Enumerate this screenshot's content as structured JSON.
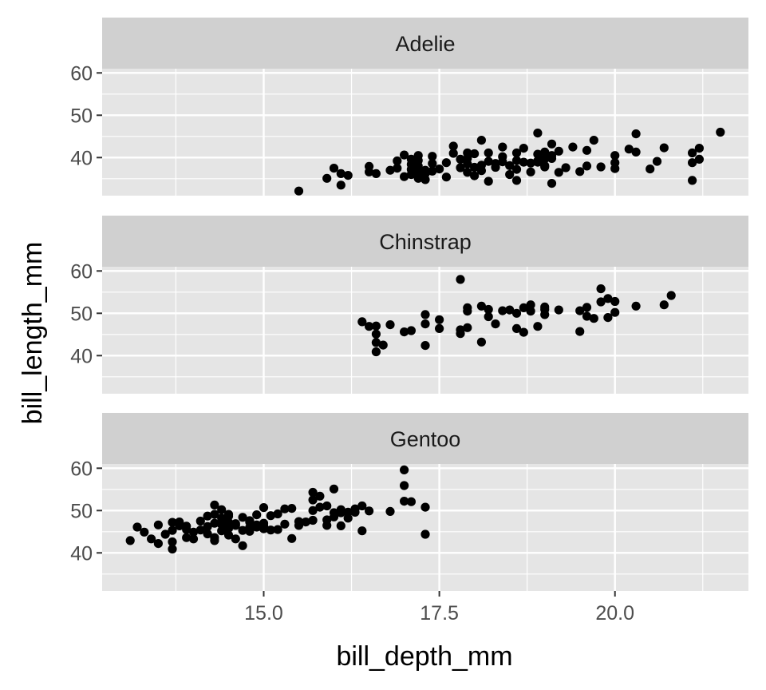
{
  "chart_data": {
    "type": "scatter",
    "xlabel": "bill_depth_mm",
    "ylabel": "bill_length_mm",
    "xlim": [
      12.7,
      21.9
    ],
    "ylim": [
      31.0,
      61.0
    ],
    "x_ticks": [
      15.0,
      17.5,
      20.0
    ],
    "x_tick_labels": [
      "15.0",
      "17.5",
      "20.0"
    ],
    "y_ticks": [
      40,
      50,
      60
    ],
    "y_tick_labels": [
      "40",
      "50",
      "60"
    ],
    "grid": true,
    "legend": "none",
    "colors": {
      "panel_bg": "#e5e5e5",
      "strip_bg": "#d0d0d0",
      "grid": "#ffffff",
      "point": "#000000"
    },
    "facets": [
      {
        "label": "Adelie",
        "points": [
          [
            15.5,
            32.1
          ],
          [
            15.9,
            35.1
          ],
          [
            16.0,
            37.5
          ],
          [
            16.1,
            36.2
          ],
          [
            16.1,
            33.5
          ],
          [
            16.2,
            35.8
          ],
          [
            16.5,
            37.9
          ],
          [
            16.5,
            36.6
          ],
          [
            16.6,
            36.2
          ],
          [
            16.8,
            37.0
          ],
          [
            16.9,
            39.2
          ],
          [
            16.9,
            37.5
          ],
          [
            17.0,
            35.5
          ],
          [
            17.0,
            40.6
          ],
          [
            17.1,
            36.0
          ],
          [
            17.1,
            38.4
          ],
          [
            17.1,
            39.6
          ],
          [
            17.1,
            37.2
          ],
          [
            17.2,
            38.0
          ],
          [
            17.2,
            36.4
          ],
          [
            17.2,
            40.5
          ],
          [
            17.2,
            35.1
          ],
          [
            17.3,
            37.0
          ],
          [
            17.3,
            34.8
          ],
          [
            17.3,
            36.2
          ],
          [
            17.4,
            38.6
          ],
          [
            17.4,
            40.3
          ],
          [
            17.5,
            37.3
          ],
          [
            17.6,
            38.8
          ],
          [
            17.6,
            35.4
          ],
          [
            17.7,
            41.0
          ],
          [
            17.7,
            42.7
          ],
          [
            17.8,
            39.6
          ],
          [
            17.8,
            37.6
          ],
          [
            17.9,
            38.5
          ],
          [
            17.9,
            36.5
          ],
          [
            18.0,
            35.7
          ],
          [
            18.0,
            37.7
          ],
          [
            18.0,
            40.9
          ],
          [
            18.1,
            44.1
          ],
          [
            18.1,
            38.2
          ],
          [
            18.1,
            36.9
          ],
          [
            18.2,
            39.1
          ],
          [
            18.2,
            34.4
          ],
          [
            18.2,
            41.1
          ],
          [
            18.3,
            38.6
          ],
          [
            18.3,
            37.7
          ],
          [
            18.4,
            40.2
          ],
          [
            18.4,
            42.5
          ],
          [
            18.5,
            36.0
          ],
          [
            18.5,
            38.1
          ],
          [
            18.6,
            41.1
          ],
          [
            18.6,
            39.3
          ],
          [
            18.6,
            34.6
          ],
          [
            18.7,
            38.9
          ],
          [
            18.7,
            42.2
          ],
          [
            18.8,
            38.7
          ],
          [
            18.8,
            36.6
          ],
          [
            18.9,
            40.8
          ],
          [
            18.9,
            45.8
          ],
          [
            18.9,
            39.2
          ],
          [
            19.0,
            38.1
          ],
          [
            19.0,
            41.3
          ],
          [
            19.0,
            37.8
          ],
          [
            19.1,
            39.8
          ],
          [
            19.1,
            43.2
          ],
          [
            19.1,
            40.5
          ],
          [
            19.1,
            33.9
          ],
          [
            19.2,
            41.5
          ],
          [
            19.3,
            37.6
          ],
          [
            19.4,
            42.5
          ],
          [
            19.5,
            36.7
          ],
          [
            19.6,
            38.0
          ],
          [
            19.6,
            41.7
          ],
          [
            19.7,
            44.1
          ],
          [
            19.8,
            37.8
          ],
          [
            20.0,
            38.8
          ],
          [
            20.0,
            40.5
          ],
          [
            20.0,
            37.4
          ],
          [
            20.2,
            42.0
          ],
          [
            20.3,
            41.3
          ],
          [
            20.3,
            45.6
          ],
          [
            20.5,
            37.3
          ],
          [
            20.6,
            39.1
          ],
          [
            20.7,
            42.3
          ],
          [
            21.1,
            41.1
          ],
          [
            21.1,
            38.8
          ],
          [
            21.1,
            34.6
          ],
          [
            21.2,
            42.2
          ],
          [
            21.5,
            46.0
          ],
          [
            21.2,
            39.6
          ],
          [
            17.9,
            41.1
          ],
          [
            18.6,
            37.2
          ],
          [
            18.4,
            39.0
          ],
          [
            17.4,
            36.8
          ],
          [
            19.2,
            36.5
          ],
          [
            18.9,
            38.9
          ],
          [
            19.0,
            39.7
          ],
          [
            17.2,
            39.3
          ],
          [
            17.9,
            39.8
          ]
        ]
      },
      {
        "label": "Chinstrap",
        "points": [
          [
            16.4,
            48.0
          ],
          [
            16.5,
            46.9
          ],
          [
            16.6,
            45.1
          ],
          [
            16.6,
            43.1
          ],
          [
            16.6,
            40.9
          ],
          [
            16.7,
            42.5
          ],
          [
            16.6,
            47.0
          ],
          [
            16.8,
            47.3
          ],
          [
            17.0,
            45.6
          ],
          [
            17.1,
            45.9
          ],
          [
            17.3,
            49.7
          ],
          [
            17.3,
            42.4
          ],
          [
            17.3,
            47.5
          ],
          [
            17.5,
            48.5
          ],
          [
            17.5,
            46.4
          ],
          [
            17.8,
            58.0
          ],
          [
            17.8,
            46.1
          ],
          [
            17.8,
            45.2
          ],
          [
            17.9,
            46.6
          ],
          [
            17.9,
            50.5
          ],
          [
            17.9,
            51.3
          ],
          [
            18.1,
            43.2
          ],
          [
            18.1,
            51.7
          ],
          [
            18.2,
            49.2
          ],
          [
            18.2,
            50.9
          ],
          [
            18.3,
            47.5
          ],
          [
            18.4,
            50.6
          ],
          [
            18.5,
            50.8
          ],
          [
            18.6,
            46.4
          ],
          [
            18.6,
            50.0
          ],
          [
            18.7,
            45.5
          ],
          [
            18.7,
            51.3
          ],
          [
            18.8,
            50.5
          ],
          [
            18.8,
            52.0
          ],
          [
            18.9,
            46.9
          ],
          [
            19.0,
            50.9
          ],
          [
            19.0,
            49.7
          ],
          [
            19.0,
            51.5
          ],
          [
            19.2,
            50.8
          ],
          [
            19.5,
            45.7
          ],
          [
            19.5,
            50.6
          ],
          [
            19.6,
            49.3
          ],
          [
            19.6,
            51.4
          ],
          [
            19.7,
            48.8
          ],
          [
            19.8,
            55.8
          ],
          [
            19.8,
            52.7
          ],
          [
            19.9,
            53.5
          ],
          [
            19.9,
            49.0
          ],
          [
            20.0,
            50.2
          ],
          [
            20.0,
            52.8
          ],
          [
            20.3,
            51.7
          ],
          [
            20.7,
            52.0
          ],
          [
            20.8,
            54.2
          ]
        ]
      },
      {
        "label": "Gentoo",
        "points": [
          [
            13.1,
            42.9
          ],
          [
            13.2,
            46.1
          ],
          [
            13.3,
            44.9
          ],
          [
            13.4,
            43.3
          ],
          [
            13.5,
            46.6
          ],
          [
            13.5,
            42.2
          ],
          [
            13.6,
            44.4
          ],
          [
            13.7,
            45.3
          ],
          [
            13.7,
            47.2
          ],
          [
            13.7,
            40.9
          ],
          [
            13.7,
            42.6
          ],
          [
            13.8,
            46.4
          ],
          [
            13.8,
            47.3
          ],
          [
            13.9,
            45.5
          ],
          [
            13.9,
            43.6
          ],
          [
            14.0,
            44.9
          ],
          [
            14.0,
            43.3
          ],
          [
            14.1,
            47.5
          ],
          [
            14.1,
            45.4
          ],
          [
            14.2,
            46.2
          ],
          [
            14.2,
            48.7
          ],
          [
            14.2,
            44.5
          ],
          [
            14.3,
            47.0
          ],
          [
            14.3,
            49.1
          ],
          [
            14.3,
            51.3
          ],
          [
            14.3,
            42.9
          ],
          [
            14.3,
            43.6
          ],
          [
            14.4,
            50.2
          ],
          [
            14.4,
            46.7
          ],
          [
            14.4,
            45.2
          ],
          [
            14.4,
            48.2
          ],
          [
            14.5,
            47.2
          ],
          [
            14.5,
            45.8
          ],
          [
            14.5,
            48.7
          ],
          [
            14.5,
            49.1
          ],
          [
            14.5,
            44.2
          ],
          [
            14.6,
            43.3
          ],
          [
            14.6,
            46.5
          ],
          [
            14.7,
            45.3
          ],
          [
            14.7,
            48.4
          ],
          [
            14.7,
            41.7
          ],
          [
            14.8,
            46.0
          ],
          [
            14.8,
            47.3
          ],
          [
            14.8,
            45.1
          ],
          [
            14.9,
            46.1
          ],
          [
            14.9,
            49.0
          ],
          [
            15.0,
            45.7
          ],
          [
            15.0,
            47.0
          ],
          [
            15.0,
            50.7
          ],
          [
            15.0,
            46.4
          ],
          [
            15.1,
            48.8
          ],
          [
            15.2,
            45.5
          ],
          [
            15.2,
            49.2
          ],
          [
            15.3,
            50.4
          ],
          [
            15.3,
            46.8
          ],
          [
            15.4,
            43.4
          ],
          [
            15.4,
            50.5
          ],
          [
            15.5,
            47.4
          ],
          [
            15.5,
            46.5
          ],
          [
            15.6,
            47.3
          ],
          [
            15.7,
            50.0
          ],
          [
            15.7,
            47.7
          ],
          [
            15.7,
            52.5
          ],
          [
            15.7,
            54.3
          ],
          [
            15.8,
            50.8
          ],
          [
            15.8,
            53.4
          ],
          [
            15.9,
            46.5
          ],
          [
            15.9,
            51.1
          ],
          [
            16.0,
            49.5
          ],
          [
            16.0,
            48.5
          ],
          [
            16.0,
            55.1
          ],
          [
            16.1,
            49.5
          ],
          [
            16.1,
            46.4
          ],
          [
            16.2,
            49.6
          ],
          [
            16.2,
            48.2
          ],
          [
            16.3,
            49.6
          ],
          [
            16.3,
            50.4
          ],
          [
            16.4,
            51.1
          ],
          [
            16.4,
            45.2
          ],
          [
            16.5,
            49.9
          ],
          [
            16.8,
            49.8
          ],
          [
            17.0,
            52.2
          ],
          [
            17.0,
            55.9
          ],
          [
            17.0,
            59.6
          ],
          [
            17.1,
            52.1
          ],
          [
            17.3,
            50.8
          ],
          [
            17.3,
            44.4
          ],
          [
            14.8,
            47.6
          ],
          [
            15.1,
            45.4
          ],
          [
            14.6,
            46.9
          ],
          [
            15.9,
            47.8
          ],
          [
            14.9,
            46.6
          ],
          [
            13.9,
            46.3
          ],
          [
            16.1,
            50.2
          ]
        ]
      }
    ]
  }
}
